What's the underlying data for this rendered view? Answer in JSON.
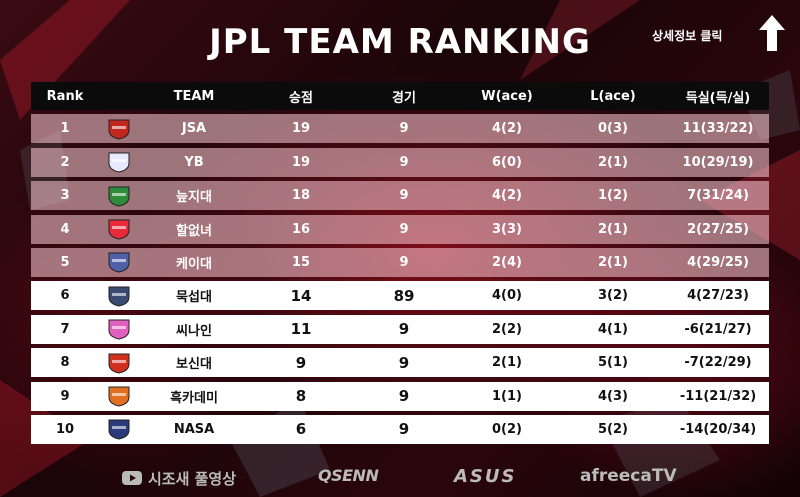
{
  "title": "JPL TEAM RANKING",
  "detail_link": "상세정보 클릭",
  "headers": {
    "rank": "Rank",
    "team": "TEAM",
    "points": "승점",
    "games": "경기",
    "wins": "W(ace)",
    "losses": "L(ace)",
    "diff": "득실(득/실)"
  },
  "rows": [
    {
      "rank": "1",
      "team": "JSA",
      "points": "19",
      "games": "9",
      "wins": "4(2)",
      "losses": "0(3)",
      "diff": "11(33/22)",
      "logo_color": "#c0281e"
    },
    {
      "rank": "2",
      "team": "YB",
      "points": "19",
      "games": "9",
      "wins": "6(0)",
      "losses": "2(1)",
      "diff": "10(29/19)",
      "logo_color": "#e8e8ff"
    },
    {
      "rank": "3",
      "team": "늪지대",
      "points": "18",
      "games": "9",
      "wins": "4(2)",
      "losses": "1(2)",
      "diff": "7(31/24)",
      "logo_color": "#2e8b3a"
    },
    {
      "rank": "4",
      "team": "할없녀",
      "points": "16",
      "games": "9",
      "wins": "3(3)",
      "losses": "2(1)",
      "diff": "2(27/25)",
      "logo_color": "#e82a3a"
    },
    {
      "rank": "5",
      "team": "케이대",
      "points": "15",
      "games": "9",
      "wins": "2(4)",
      "losses": "2(1)",
      "diff": "4(29/25)",
      "logo_color": "#5060a8"
    },
    {
      "rank": "6",
      "team": "묵섭대",
      "points": "14",
      "games": "89",
      "wins": "4(0)",
      "losses": "3(2)",
      "diff": "4(27/23)",
      "logo_color": "#3a4a70"
    },
    {
      "rank": "7",
      "team": "씨나인",
      "points": "11",
      "games": "9",
      "wins": "2(2)",
      "losses": "4(1)",
      "diff": "-6(21/27)",
      "logo_color": "#e060c0"
    },
    {
      "rank": "8",
      "team": "보신대",
      "points": "9",
      "games": "9",
      "wins": "2(1)",
      "losses": "5(1)",
      "diff": "-7(22/29)",
      "logo_color": "#d03020"
    },
    {
      "rank": "9",
      "team": "흑카데미",
      "points": "8",
      "games": "9",
      "wins": "1(1)",
      "losses": "4(3)",
      "diff": "-11(21/32)",
      "logo_color": "#e07020"
    },
    {
      "rank": "10",
      "team": "NASA",
      "points": "6",
      "games": "9",
      "wins": "0(2)",
      "losses": "5(2)",
      "diff": "-14(20/34)",
      "logo_color": "#2a3a7a"
    }
  ],
  "footer": {
    "channel": "시조새 풀영상",
    "sponsor1": "QSENN",
    "sponsor2": "ASUS",
    "sponsor3": "afreecaTV"
  }
}
